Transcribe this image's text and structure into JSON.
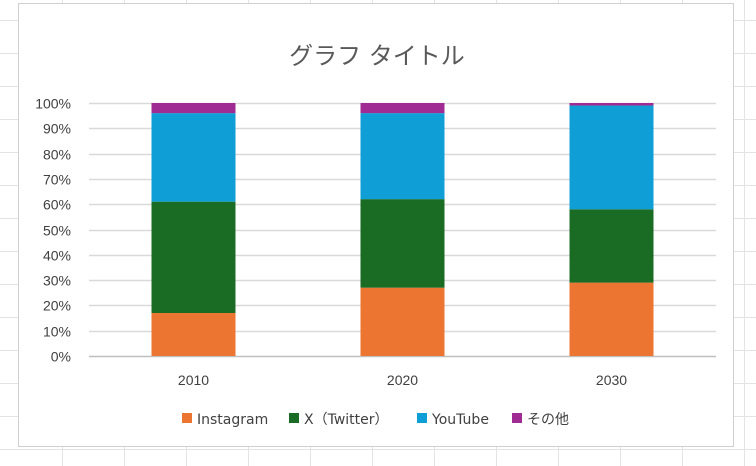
{
  "chart_data": {
    "type": "bar",
    "stacked": true,
    "percent_stacked": true,
    "title": "グラフ タイトル",
    "categories": [
      "2010",
      "2020",
      "2030"
    ],
    "series": [
      {
        "name": "Instagram",
        "color": "#ED7532",
        "values": [
          17,
          27,
          29
        ]
      },
      {
        "name": "X（Twitter）",
        "color": "#1A6B24",
        "values": [
          44,
          35,
          29
        ]
      },
      {
        "name": "YouTube",
        "color": "#0F9ED5",
        "values": [
          35,
          34,
          41
        ]
      },
      {
        "name": "その他",
        "color": "#A02B93",
        "values": [
          4,
          4,
          1
        ]
      }
    ],
    "ylim": [
      0,
      100
    ],
    "yticks": [
      "0%",
      "10%",
      "20%",
      "30%",
      "40%",
      "50%",
      "60%",
      "70%",
      "80%",
      "90%",
      "100%"
    ],
    "grid": true,
    "legend_position": "bottom"
  }
}
